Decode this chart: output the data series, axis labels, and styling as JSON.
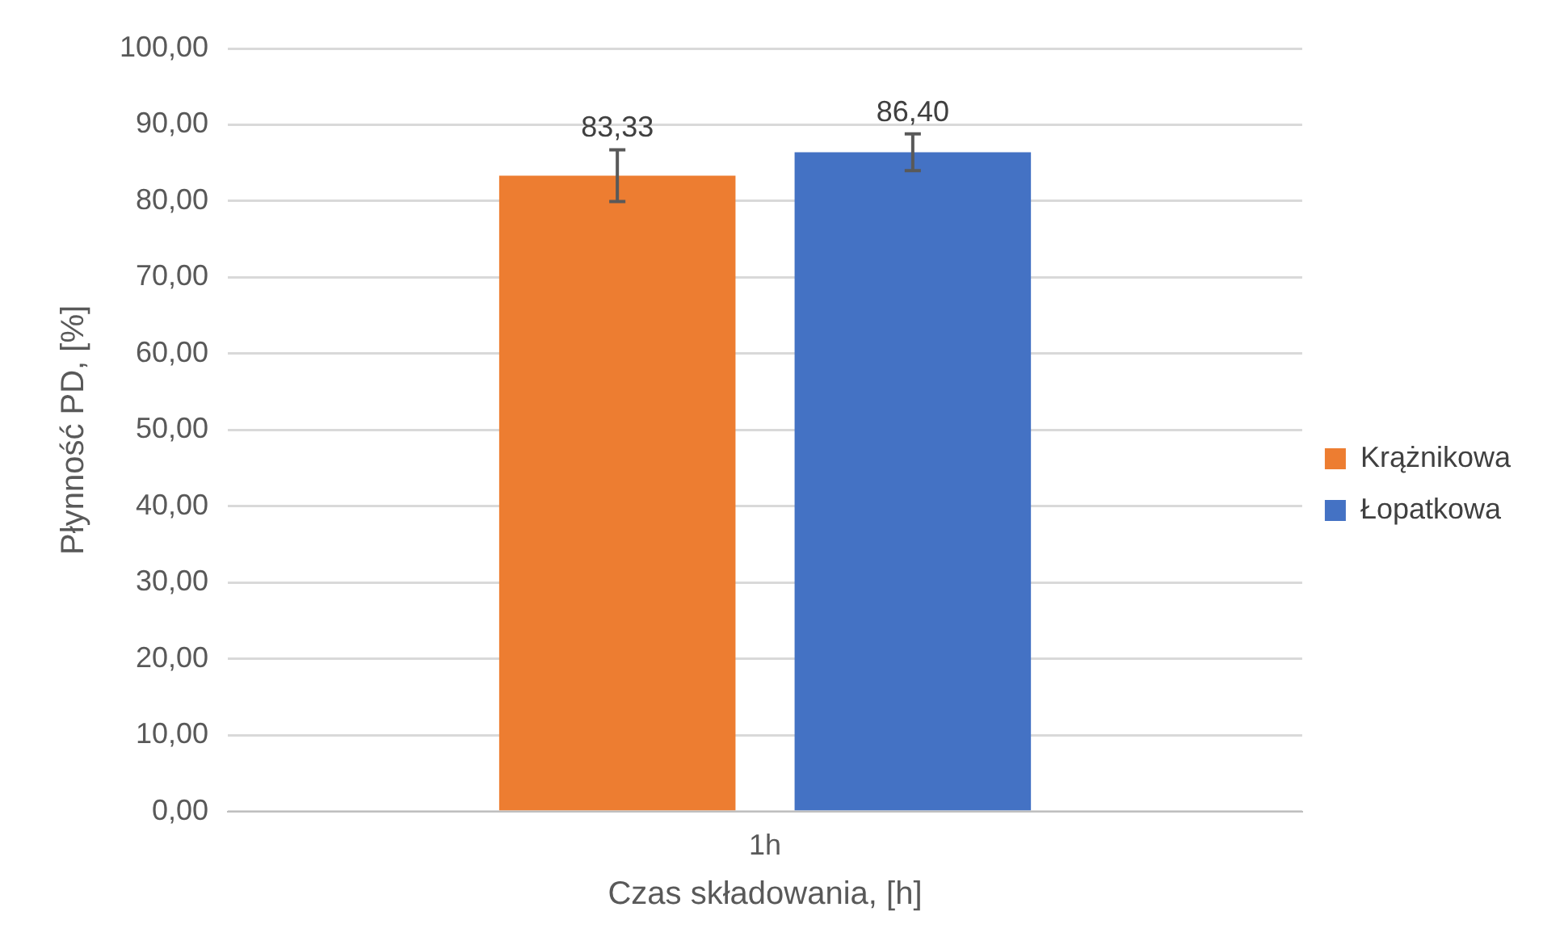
{
  "chart_data": {
    "type": "bar",
    "xlabel": "Czas składowania, [h]",
    "ylabel": "Płynność PD, [%]",
    "categories": [
      "1h"
    ],
    "series": [
      {
        "name": "Krążnikowa",
        "color": "#ed7d31",
        "values": [
          83.33
        ],
        "errors": [
          3.4
        ],
        "value_labels": [
          "83,33"
        ]
      },
      {
        "name": "Łopatkowa",
        "color": "#4472c4",
        "values": [
          86.4
        ],
        "errors": [
          2.4
        ],
        "value_labels": [
          "86,40"
        ]
      }
    ],
    "ylim": [
      0,
      100
    ],
    "yticks": [
      {
        "value": 0,
        "label": "0,00"
      },
      {
        "value": 10,
        "label": "10,00"
      },
      {
        "value": 20,
        "label": "20,00"
      },
      {
        "value": 30,
        "label": "30,00"
      },
      {
        "value": 40,
        "label": "40,00"
      },
      {
        "value": 50,
        "label": "50,00"
      },
      {
        "value": 60,
        "label": "60,00"
      },
      {
        "value": 70,
        "label": "70,00"
      },
      {
        "value": 80,
        "label": "80,00"
      },
      {
        "value": 90,
        "label": "90,00"
      },
      {
        "value": 100,
        "label": "100,00"
      }
    ],
    "grid": "y",
    "legend": "right"
  }
}
